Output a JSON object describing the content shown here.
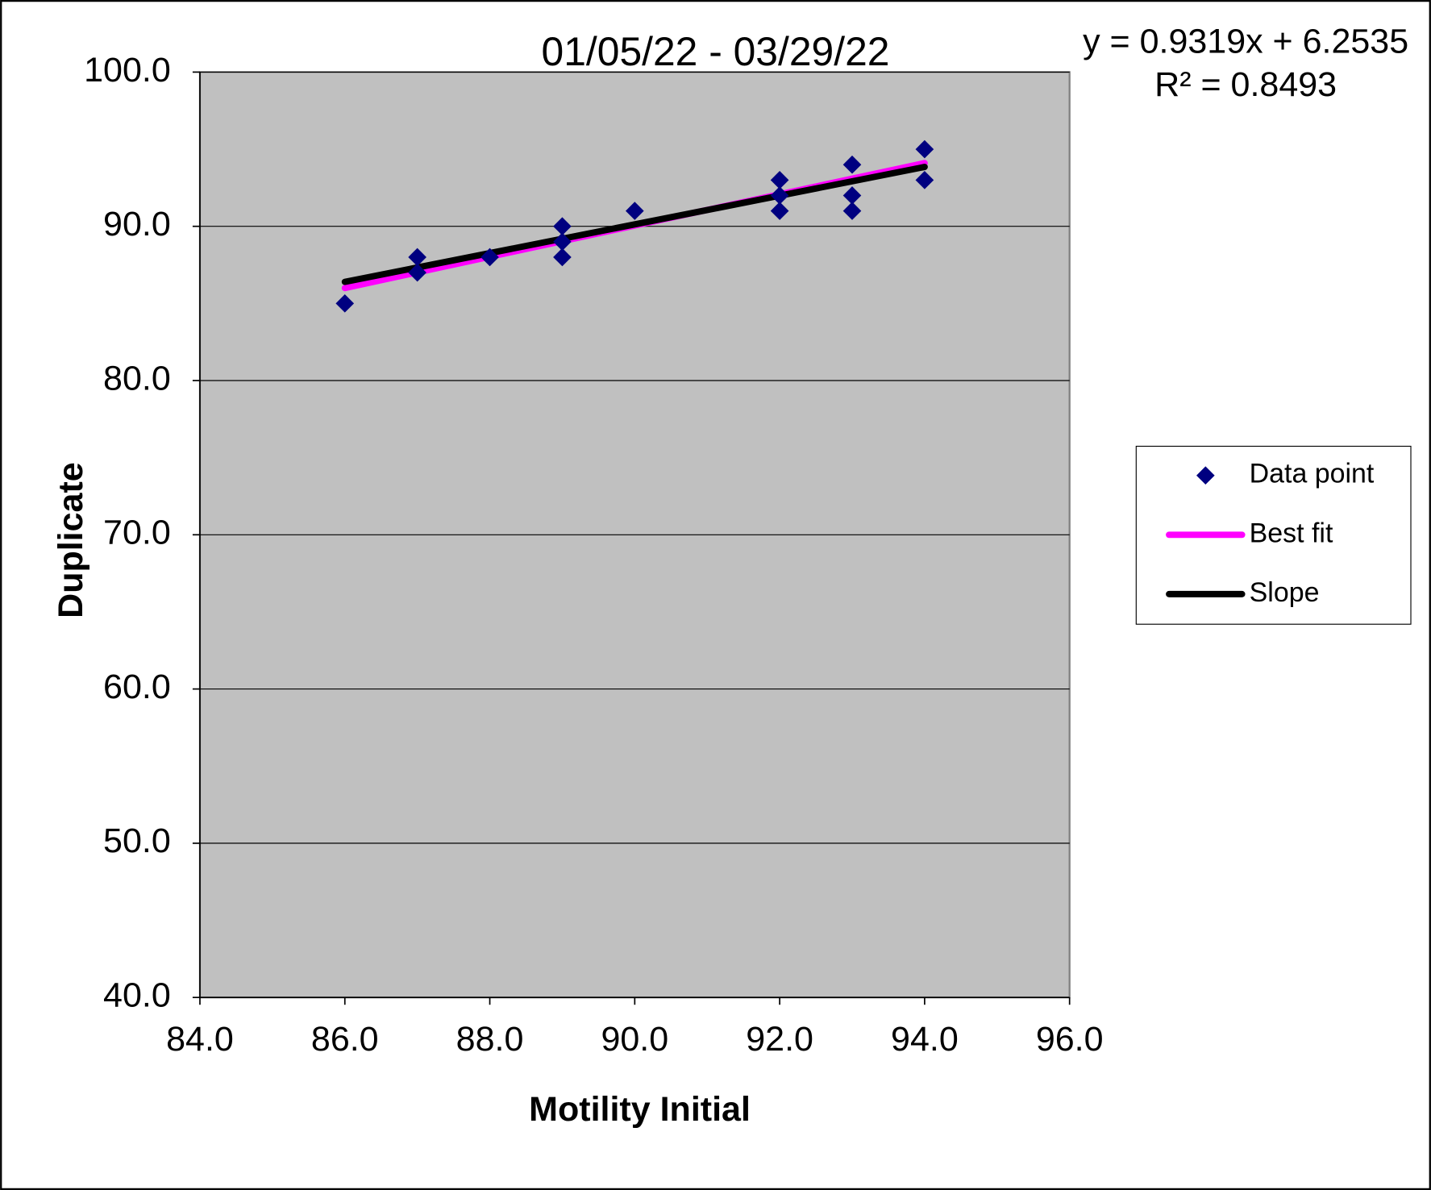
{
  "chart_data": {
    "type": "scatter",
    "title": "01/05/22 - 03/29/22",
    "annotations": [
      "y = 0.9319x + 6.2535",
      "R² = 0.8493"
    ],
    "x_label": "Motility Initial",
    "y_label": "Duplicate",
    "background": "#c0c0c0",
    "grid": true,
    "legend": "right",
    "xlim": [
      84,
      96
    ],
    "ylim": [
      40,
      100
    ],
    "xticks": [
      {
        "value": 84,
        "label": "84.0"
      },
      {
        "value": 86,
        "label": "86.0"
      },
      {
        "value": 88,
        "label": "88.0"
      },
      {
        "value": 90,
        "label": "90.0"
      },
      {
        "value": 92,
        "label": "92.0"
      },
      {
        "value": 94,
        "label": "94.0"
      },
      {
        "value": 96,
        "label": "96.0"
      }
    ],
    "yticks": [
      {
        "value": 40,
        "label": "40.0"
      },
      {
        "value": 50,
        "label": "50.0"
      },
      {
        "value": 60,
        "label": "60.0"
      },
      {
        "value": 70,
        "label": "70.0"
      },
      {
        "value": 80,
        "label": "80.0"
      },
      {
        "value": 90,
        "label": "90.0"
      },
      {
        "value": 100,
        "label": "100.0"
      }
    ],
    "series": [
      {
        "name": "Data point",
        "mode": "markers",
        "color": "#000080",
        "x": [
          86,
          87,
          87,
          88,
          89,
          89,
          89,
          90,
          92,
          92,
          92,
          93,
          93,
          93,
          94,
          94
        ],
        "values": [
          85,
          88,
          87,
          88,
          90,
          89,
          88,
          91,
          93,
          92,
          91,
          94,
          92,
          91,
          95,
          93
        ]
      },
      {
        "name": "Best fit",
        "mode": "line",
        "color": "#ff00ff",
        "x": [
          86,
          94
        ],
        "values": [
          86.0,
          94.1
        ]
      },
      {
        "name": "Slope",
        "mode": "line",
        "color": "#000000",
        "x": [
          86,
          94
        ],
        "values": [
          86.4,
          93.85
        ]
      }
    ]
  }
}
